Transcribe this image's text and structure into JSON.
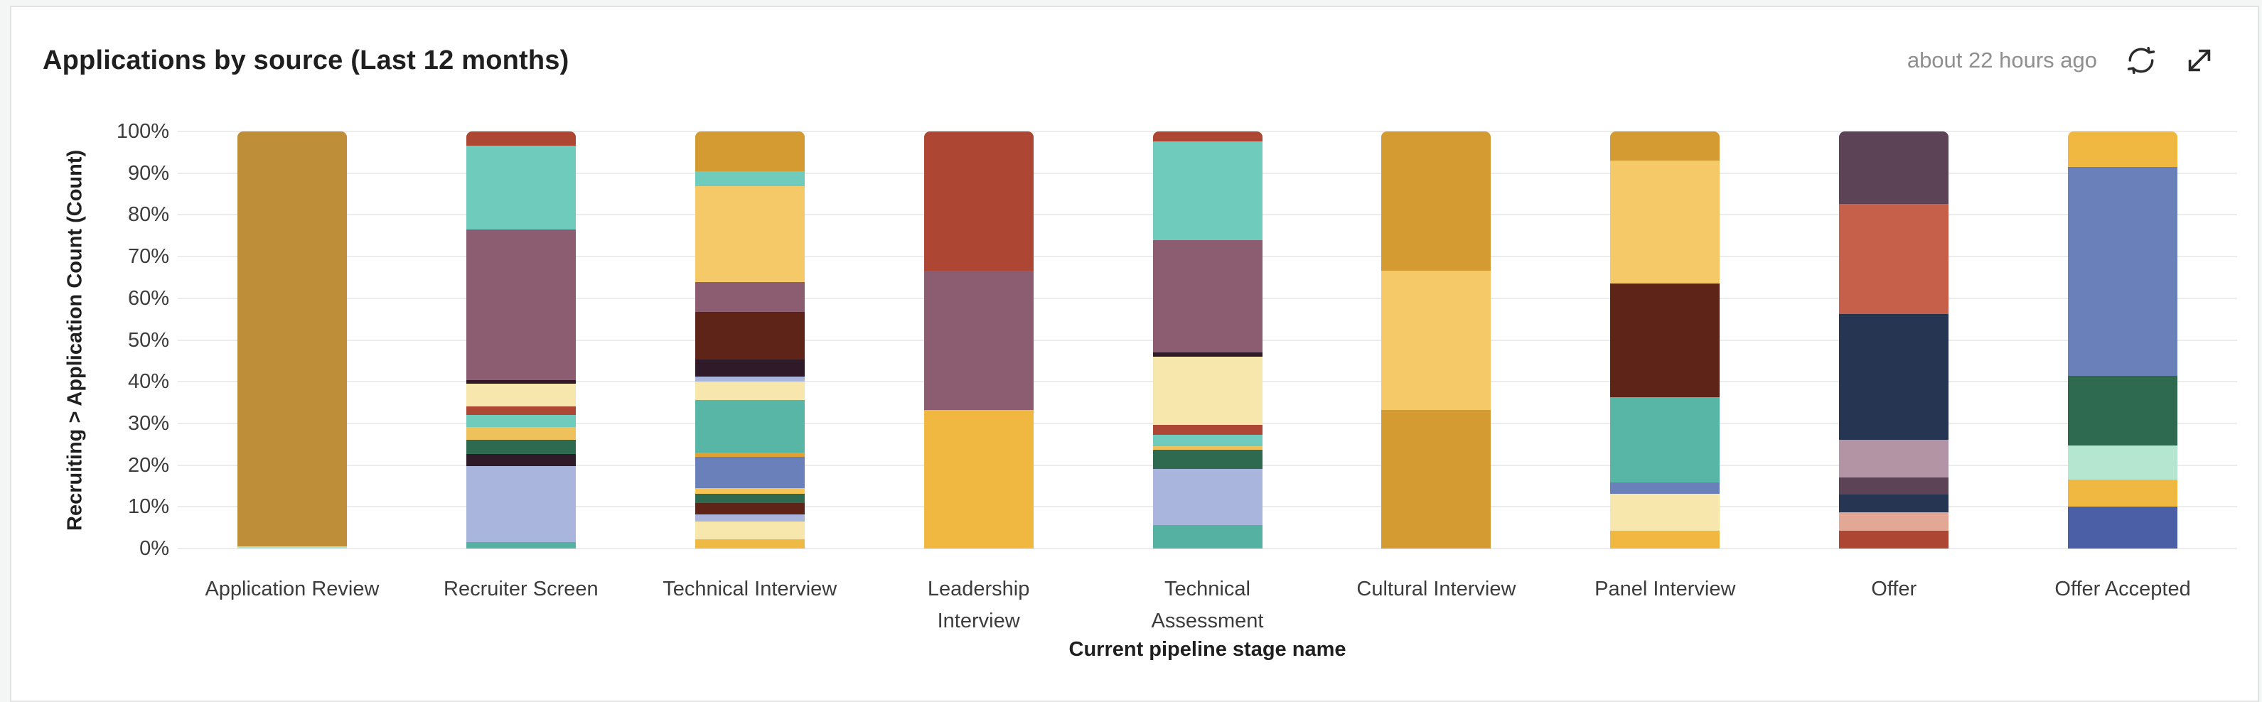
{
  "header": {
    "title": "Applications by source (Last 12 months)",
    "updated": "about 22 hours ago"
  },
  "chart_data": {
    "type": "bar",
    "stacking": "percent",
    "orientation": "vertical",
    "title": "Applications by source (Last 12 months)",
    "xlabel": "Current pipeline stage name",
    "ylabel": "Recruiting > Application Count (Count)",
    "ylim": [
      0,
      100
    ],
    "y_ticks_top_to_bottom": [
      "100%",
      "90%",
      "80%",
      "70%",
      "60%",
      "50%",
      "40%",
      "30%",
      "20%",
      "10%",
      "0%"
    ],
    "grid": "horizontal",
    "legend": "none",
    "categories": [
      "Application Review",
      "Recruiter Screen",
      "Technical Interview",
      "Leadership Interview",
      "Technical Assessment",
      "Cultural Interview",
      "Panel Interview",
      "Offer",
      "Offer Accepted"
    ],
    "x_tick_lines": [
      [
        "Application Review"
      ],
      [
        "Recruiter Screen"
      ],
      [
        "Technical Interview"
      ],
      [
        "Leadership",
        "Interview"
      ],
      [
        "Technical",
        "Assessment"
      ],
      [
        "Cultural Interview"
      ],
      [
        "Panel Interview"
      ],
      [
        "Offer"
      ],
      [
        "Offer Accepted"
      ]
    ],
    "bars": [
      {
        "category": "Application Review",
        "segments_top_to_bottom": [
          {
            "color": "#bf8e38",
            "value_pct": 99.5
          },
          {
            "color": "#b5e6d0",
            "value_pct": 0.5
          }
        ]
      },
      {
        "category": "Recruiter Screen",
        "segments_top_to_bottom": [
          {
            "color": "#ad4734",
            "value_pct": 3.4
          },
          {
            "color": "#6fccbd",
            "value_pct": 20.1
          },
          {
            "color": "#8c5c70",
            "value_pct": 36.2
          },
          {
            "color": "#2e1a28",
            "value_pct": 0.7
          },
          {
            "color": "#f7e7ad",
            "value_pct": 5.5
          },
          {
            "color": "#ad4734",
            "value_pct": 2.0
          },
          {
            "color": "#6fccbd",
            "value_pct": 3.0
          },
          {
            "color": "#eec15c",
            "value_pct": 3.0
          },
          {
            "color": "#2e6a4f",
            "value_pct": 3.4
          },
          {
            "color": "#2e1a28",
            "value_pct": 3.0
          },
          {
            "color": "#aab5dd",
            "value_pct": 18.2
          },
          {
            "color": "#55b2a2",
            "value_pct": 1.5
          }
        ]
      },
      {
        "category": "Technical Interview",
        "segments_top_to_bottom": [
          {
            "color": "#d49b33",
            "value_pct": 9.5
          },
          {
            "color": "#6fccbd",
            "value_pct": 3.7
          },
          {
            "color": "#f5c868",
            "value_pct": 23.0
          },
          {
            "color": "#8c5c70",
            "value_pct": 7.0
          },
          {
            "color": "#5e2418",
            "value_pct": 11.5
          },
          {
            "color": "#2e1a28",
            "value_pct": 4.0
          },
          {
            "color": "#aab5dd",
            "value_pct": 1.2
          },
          {
            "color": "#f7e7ad",
            "value_pct": 4.5
          },
          {
            "color": "#57b6a6",
            "value_pct": 12.6
          },
          {
            "color": "#dfa232",
            "value_pct": 1.0
          },
          {
            "color": "#6a80ba",
            "value_pct": 7.5
          },
          {
            "color": "#f5c455",
            "value_pct": 1.4
          },
          {
            "color": "#2e6a4f",
            "value_pct": 2.3
          },
          {
            "color": "#5e2418",
            "value_pct": 2.7
          },
          {
            "color": "#aab5dd",
            "value_pct": 1.6
          },
          {
            "color": "#f7e7ad",
            "value_pct": 4.3
          },
          {
            "color": "#eeb944",
            "value_pct": 2.2
          }
        ]
      },
      {
        "category": "Leadership Interview",
        "segments_top_to_bottom": [
          {
            "color": "#ad4734",
            "value_pct": 33.4
          },
          {
            "color": "#8c5c70",
            "value_pct": 33.3
          },
          {
            "color": "#f0b840",
            "value_pct": 33.3
          }
        ]
      },
      {
        "category": "Technical Assessment",
        "segments_top_to_bottom": [
          {
            "color": "#ad4734",
            "value_pct": 2.4
          },
          {
            "color": "#6fccbd",
            "value_pct": 23.7
          },
          {
            "color": "#8c5c70",
            "value_pct": 26.9
          },
          {
            "color": "#2e1a28",
            "value_pct": 1.0
          },
          {
            "color": "#f7e7ad",
            "value_pct": 16.4
          },
          {
            "color": "#ad4734",
            "value_pct": 2.4
          },
          {
            "color": "#6fccbd",
            "value_pct": 2.7
          },
          {
            "color": "#eec15c",
            "value_pct": 0.8
          },
          {
            "color": "#2e6a4f",
            "value_pct": 4.6
          },
          {
            "color": "#aab5dd",
            "value_pct": 13.5
          },
          {
            "color": "#55b2a2",
            "value_pct": 5.6
          }
        ]
      },
      {
        "category": "Cultural Interview",
        "segments_top_to_bottom": [
          {
            "color": "#d49b33",
            "value_pct": 33.4
          },
          {
            "color": "#f5c868",
            "value_pct": 33.3
          },
          {
            "color": "#d49b33",
            "value_pct": 33.3
          }
        ]
      },
      {
        "category": "Panel Interview",
        "segments_top_to_bottom": [
          {
            "color": "#d49b33",
            "value_pct": 7.0
          },
          {
            "color": "#f5c868",
            "value_pct": 29.4
          },
          {
            "color": "#5e2418",
            "value_pct": 27.3
          },
          {
            "color": "#57b6a6",
            "value_pct": 20.5
          },
          {
            "color": "#6a80ba",
            "value_pct": 2.7
          },
          {
            "color": "#f7e7ad",
            "value_pct": 8.8
          },
          {
            "color": "#f0b840",
            "value_pct": 4.3
          }
        ]
      },
      {
        "category": "Offer",
        "segments_top_to_bottom": [
          {
            "color": "#5c4355",
            "value_pct": 17.4
          },
          {
            "color": "#c7604a",
            "value_pct": 26.3
          },
          {
            "color": "#263652",
            "value_pct": 30.3
          },
          {
            "color": "#b394a5",
            "value_pct": 8.9
          },
          {
            "color": "#5c4355",
            "value_pct": 4.1
          },
          {
            "color": "#263652",
            "value_pct": 4.4
          },
          {
            "color": "#e3a795",
            "value_pct": 4.4
          },
          {
            "color": "#ad4734",
            "value_pct": 4.2
          }
        ]
      },
      {
        "category": "Offer Accepted",
        "segments_top_to_bottom": [
          {
            "color": "#f0b840",
            "value_pct": 8.5
          },
          {
            "color": "#6a80ba",
            "value_pct": 50.1
          },
          {
            "color": "#2e6a4f",
            "value_pct": 16.7
          },
          {
            "color": "#b5e6d0",
            "value_pct": 8.2
          },
          {
            "color": "#f0b840",
            "value_pct": 6.4
          },
          {
            "color": "#4a5fa5",
            "value_pct": 10.1
          }
        ]
      }
    ]
  },
  "colors": {
    "card_background": "#ffffff",
    "page_background": "#f4f5f5",
    "card_border": "#e3e3e3",
    "gridline": "#ececec",
    "axis_text": "#3c3c3c",
    "title_text": "#1f1f1f",
    "updated_text": "#8f8f8f",
    "icon": "#2b2b2b"
  },
  "icons": {
    "refresh": "refresh-icon",
    "expand": "expand-icon"
  }
}
